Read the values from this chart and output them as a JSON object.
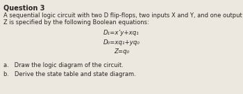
{
  "title": "Question 3",
  "line1": "A sequential logic circuit with two D flip-flops, two inputs X and Y, and one output",
  "line2": "Z is specified by the following Boolean equations:",
  "eq1": "D₁=x’y+xq₁",
  "eq2": "D₀=xq₁+yq₀",
  "eq3": "Z=q₀",
  "part_a": "a.   Draw the logic diagram of the circuit.",
  "part_b": "b.   Derive the state table and state diagram.",
  "bg_color": "#ede8df",
  "text_color": "#2a2520",
  "title_fontsize": 7.0,
  "body_fontsize": 6.0,
  "eq_fontsize": 6.2,
  "parts_fontsize": 6.0
}
